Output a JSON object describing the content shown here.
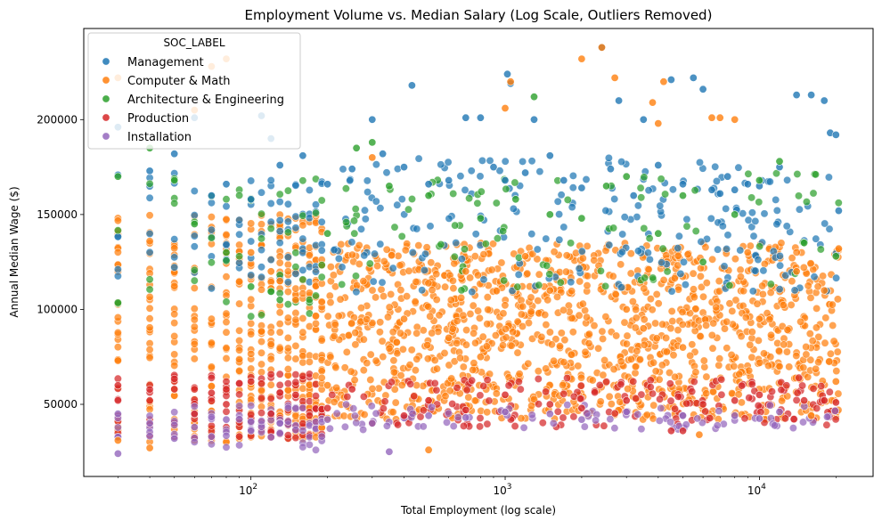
{
  "chart_data": {
    "type": "scatter",
    "title": "Employment Volume vs. Median Salary (Log Scale, Outliers Removed)",
    "xlabel": "Total Employment (log scale)",
    "ylabel": "Annual Median Wage ($)",
    "x_scale": "log",
    "xlim": [
      22,
      28000
    ],
    "ylim": [
      12000,
      248000
    ],
    "x_ticks": [
      {
        "value": 100,
        "base": "10",
        "exp": "2"
      },
      {
        "value": 1000,
        "base": "10",
        "exp": "3"
      },
      {
        "value": 10000,
        "base": "10",
        "exp": "4"
      }
    ],
    "y_ticks": [
      50000,
      100000,
      150000,
      200000
    ],
    "y_tick_labels": [
      "50000",
      "100000",
      "150000",
      "200000"
    ],
    "grid": false,
    "legend": {
      "title": "SOC_LABEL",
      "placement": "top-left"
    },
    "series": [
      {
        "name": "Management",
        "color": "#1f77b4",
        "points": [
          [
            30,
            196000
          ],
          [
            40,
            173000
          ],
          [
            50,
            182000
          ],
          [
            60,
            201000
          ],
          [
            70,
            160000
          ],
          [
            80,
            166000
          ],
          [
            100,
            158000
          ],
          [
            110,
            202000
          ],
          [
            120,
            190000
          ],
          [
            130,
            176000
          ],
          [
            160,
            181000
          ],
          [
            200,
            166000
          ],
          [
            250,
            174000
          ],
          [
            300,
            200000
          ],
          [
            330,
            182000
          ],
          [
            400,
            175000
          ],
          [
            430,
            218000
          ],
          [
            500,
            166000
          ],
          [
            600,
            168000
          ],
          [
            700,
            201000
          ],
          [
            800,
            201000
          ],
          [
            900,
            175000
          ],
          [
            1000,
            168000
          ],
          [
            1020,
            224000
          ],
          [
            1050,
            219000
          ],
          [
            1200,
            172000
          ],
          [
            1300,
            200000
          ],
          [
            1500,
            181000
          ],
          [
            1700,
            168000
          ],
          [
            2000,
            164000
          ],
          [
            2400,
            238000
          ],
          [
            2600,
            174000
          ],
          [
            2800,
            210000
          ],
          [
            3200,
            160000
          ],
          [
            3500,
            200000
          ],
          [
            4000,
            176000
          ],
          [
            4500,
            221000
          ],
          [
            5000,
            166000
          ],
          [
            5500,
            222000
          ],
          [
            6000,
            216000
          ],
          [
            6500,
            163000
          ],
          [
            7000,
            161000
          ],
          [
            7500,
            170000
          ],
          [
            8000,
            163000
          ],
          [
            9000,
            166000
          ],
          [
            10000,
            165000
          ],
          [
            12000,
            175000
          ],
          [
            14000,
            213000
          ],
          [
            16000,
            213000
          ],
          [
            18000,
            210000
          ],
          [
            19000,
            193000
          ],
          [
            20000,
            192000
          ],
          [
            20500,
            152000
          ]
        ]
      },
      {
        "name": "Computer & Math",
        "color": "#ff7f0e",
        "points": [
          [
            30,
            222000
          ],
          [
            30,
            31000
          ],
          [
            40,
            27000
          ],
          [
            60,
            205000
          ],
          [
            70,
            228000
          ],
          [
            80,
            232000
          ],
          [
            100,
            130000
          ],
          [
            120,
            120000
          ],
          [
            130,
            115000
          ],
          [
            150,
            105000
          ],
          [
            200,
            60000
          ],
          [
            300,
            180000
          ],
          [
            400,
            95000
          ],
          [
            500,
            26000
          ],
          [
            600,
            85000
          ],
          [
            700,
            120000
          ],
          [
            800,
            75000
          ],
          [
            1000,
            206000
          ],
          [
            1050,
            220000
          ],
          [
            1200,
            128000
          ],
          [
            1500,
            110000
          ],
          [
            2000,
            232000
          ],
          [
            2400,
            238000
          ],
          [
            2700,
            222000
          ],
          [
            3000,
            100000
          ],
          [
            3500,
            90000
          ],
          [
            3800,
            209000
          ],
          [
            4000,
            198000
          ],
          [
            4200,
            220000
          ],
          [
            5000,
            80000
          ],
          [
            5800,
            34000
          ],
          [
            6500,
            201000
          ],
          [
            7000,
            201000
          ],
          [
            8000,
            200000
          ],
          [
            9000,
            130000
          ],
          [
            10000,
            95000
          ],
          [
            12000,
            70000
          ],
          [
            14000,
            120000
          ],
          [
            16000,
            44000
          ],
          [
            18000,
            110000
          ],
          [
            20000,
            62000
          ],
          [
            20500,
            132000
          ]
        ]
      },
      {
        "name": "Architecture & Engineering",
        "color": "#2ca02c",
        "points": [
          [
            30,
            170000
          ],
          [
            40,
            185000
          ],
          [
            50,
            168000
          ],
          [
            60,
            145000
          ],
          [
            80,
            130000
          ],
          [
            100,
            112000
          ],
          [
            130,
            105000
          ],
          [
            200,
            140000
          ],
          [
            260,
            185000
          ],
          [
            300,
            188000
          ],
          [
            350,
            165000
          ],
          [
            500,
            160000
          ],
          [
            800,
            148000
          ],
          [
            1100,
            158000
          ],
          [
            1300,
            212000
          ],
          [
            1500,
            150000
          ],
          [
            2000,
            148000
          ],
          [
            2500,
            165000
          ],
          [
            3000,
            170000
          ],
          [
            4000,
            140000
          ],
          [
            5000,
            160000
          ],
          [
            6000,
            125000
          ],
          [
            8000,
            150000
          ],
          [
            10000,
            168000
          ],
          [
            12000,
            178000
          ],
          [
            15000,
            135000
          ],
          [
            20000,
            128000
          ]
        ]
      },
      {
        "name": "Production",
        "color": "#d62728",
        "points": [
          [
            30,
            60000
          ],
          [
            40,
            52000
          ],
          [
            50,
            58000
          ],
          [
            60,
            45000
          ],
          [
            70,
            56000
          ],
          [
            80,
            50000
          ],
          [
            90,
            33000
          ],
          [
            100,
            62000
          ],
          [
            120,
            45000
          ],
          [
            150,
            55000
          ],
          [
            200,
            48000
          ],
          [
            250,
            58000
          ],
          [
            300,
            40000
          ],
          [
            400,
            44000
          ],
          [
            500,
            52000
          ],
          [
            700,
            47000
          ],
          [
            1000,
            55000
          ],
          [
            1500,
            50000
          ],
          [
            2000,
            48000
          ],
          [
            3000,
            52000
          ],
          [
            4500,
            36000
          ],
          [
            5000,
            36000
          ],
          [
            6000,
            50000
          ],
          [
            8000,
            52000
          ],
          [
            10000,
            55000
          ],
          [
            15000,
            52000
          ],
          [
            18000,
            52000
          ],
          [
            20000,
            51000
          ]
        ]
      },
      {
        "name": "Installation",
        "color": "#9467bd",
        "points": [
          [
            30,
            24000
          ],
          [
            30,
            45000
          ],
          [
            40,
            40000
          ],
          [
            50,
            32000
          ],
          [
            60,
            38000
          ],
          [
            70,
            33000
          ],
          [
            80,
            42000
          ],
          [
            100,
            36000
          ],
          [
            130,
            40000
          ],
          [
            200,
            42000
          ],
          [
            300,
            40000
          ],
          [
            350,
            25000
          ],
          [
            500,
            44000
          ],
          [
            700,
            43000
          ],
          [
            1000,
            46000
          ],
          [
            1500,
            45000
          ],
          [
            2000,
            42000
          ],
          [
            3000,
            46000
          ],
          [
            5000,
            44000
          ],
          [
            8000,
            44000
          ],
          [
            10000,
            42500
          ],
          [
            12000,
            46000
          ]
        ]
      }
    ]
  }
}
